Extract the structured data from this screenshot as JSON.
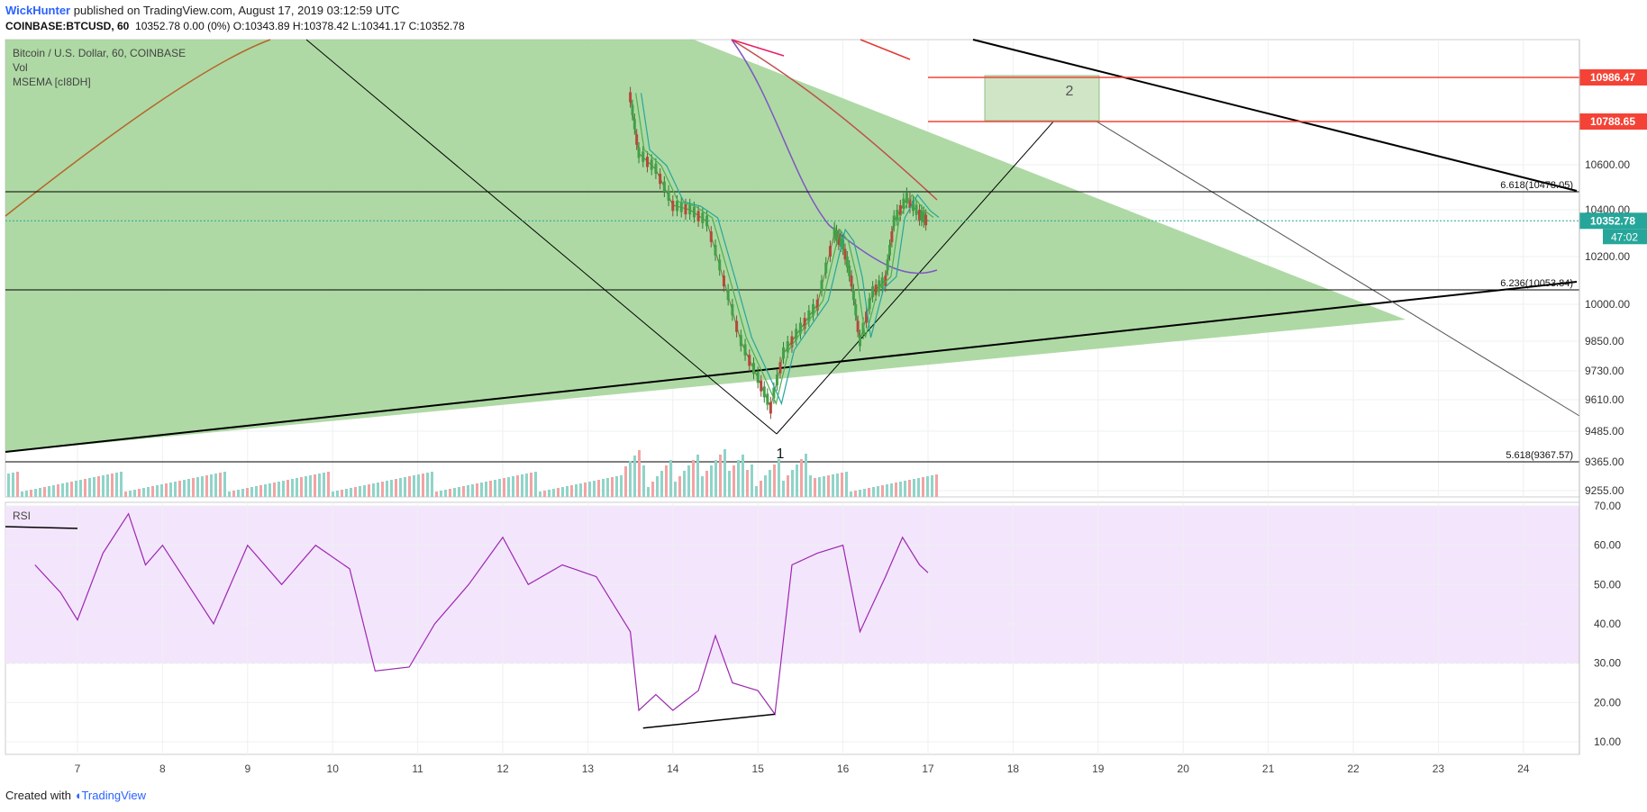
{
  "header": {
    "author": "WickHunter",
    "published": " published on TradingView.com, August 17, 2019 03:12:59 UTC",
    "symbol": "COINBASE:BTCUSD, 60",
    "quote": "10352.78 0.00 (0%) O:10343.89 H:10378.42 L:10341.17 C:10352.78"
  },
  "legend": {
    "line1": "Bitcoin / U.S. Dollar, 60, COINBASE",
    "line2": "Vol",
    "line3": "MSEMA [cI8DH]",
    "rsi": "RSI"
  },
  "footer": {
    "created": "Created with",
    "brand": "TradingView"
  },
  "colors": {
    "up": "#26a69a",
    "down": "#ef5350",
    "triangle": "#a5d59a",
    "rsi_band": "#f3e5fc",
    "rsi_line": "#9c27b0",
    "ema_fast": "#4caf50",
    "ema_mid": "#26a69a",
    "ema_slow": "#7e57c2",
    "ema_long": "#c0504d",
    "resistance": "#f44336",
    "last_price": "#26a69a"
  },
  "chart_data": {
    "type": "candlestick",
    "x_ticks": [
      "7",
      "8",
      "9",
      "10",
      "11",
      "12",
      "13",
      "14",
      "15",
      "16",
      "17",
      "18",
      "19",
      "20",
      "21",
      "22",
      "23",
      "24"
    ],
    "price_ticks": [
      "10600.00",
      "10400.00",
      "10200.00",
      "10000.00",
      "9850.00",
      "9730.00",
      "9610.00",
      "9485.00",
      "9365.00",
      "9255.00"
    ],
    "rsi_ticks": [
      "70.00",
      "60.00",
      "50.00",
      "40.00",
      "30.00",
      "20.00",
      "10.00"
    ],
    "last_price": "10352.78",
    "countdown": "47:02",
    "resistance_levels": [
      "10986.47",
      "10788.65"
    ],
    "fib_labels": [
      "6.618(10478.05)",
      "6.236(10053.84)",
      "5.618(9367.57)"
    ],
    "wave_labels": [
      "1",
      "2"
    ],
    "price_points": [
      [
        13.5,
        10900
      ],
      [
        13.6,
        10650
      ],
      [
        13.8,
        10580
      ],
      [
        14.0,
        10420
      ],
      [
        14.2,
        10400
      ],
      [
        14.4,
        10350
      ],
      [
        14.6,
        10100
      ],
      [
        14.8,
        9850
      ],
      [
        15.0,
        9700
      ],
      [
        15.15,
        9580
      ],
      [
        15.3,
        9800
      ],
      [
        15.5,
        9900
      ],
      [
        15.7,
        10000
      ],
      [
        15.9,
        10300
      ],
      [
        16.0,
        10250
      ],
      [
        16.1,
        10100
      ],
      [
        16.2,
        9850
      ],
      [
        16.35,
        10050
      ],
      [
        16.5,
        10100
      ],
      [
        16.6,
        10350
      ],
      [
        16.75,
        10450
      ],
      [
        16.9,
        10380
      ],
      [
        17.0,
        10352
      ]
    ],
    "rsi_points": [
      [
        6.5,
        55
      ],
      [
        6.8,
        48
      ],
      [
        7.0,
        41
      ],
      [
        7.3,
        58
      ],
      [
        7.6,
        68
      ],
      [
        7.8,
        55
      ],
      [
        8.0,
        60
      ],
      [
        8.3,
        50
      ],
      [
        8.6,
        40
      ],
      [
        9.0,
        60
      ],
      [
        9.4,
        50
      ],
      [
        9.8,
        60
      ],
      [
        10.2,
        54
      ],
      [
        10.5,
        28
      ],
      [
        10.9,
        29
      ],
      [
        11.2,
        40
      ],
      [
        11.6,
        50
      ],
      [
        12.0,
        62
      ],
      [
        12.3,
        50
      ],
      [
        12.7,
        55
      ],
      [
        13.1,
        52
      ],
      [
        13.5,
        38
      ],
      [
        13.6,
        18
      ],
      [
        13.8,
        22
      ],
      [
        14.0,
        18
      ],
      [
        14.3,
        23
      ],
      [
        14.5,
        37
      ],
      [
        14.7,
        25
      ],
      [
        15.0,
        23
      ],
      [
        15.2,
        17
      ],
      [
        15.4,
        55
      ],
      [
        15.7,
        58
      ],
      [
        16.0,
        60
      ],
      [
        16.2,
        38
      ],
      [
        16.5,
        52
      ],
      [
        16.7,
        62
      ],
      [
        16.9,
        55
      ],
      [
        17.0,
        53
      ]
    ]
  }
}
